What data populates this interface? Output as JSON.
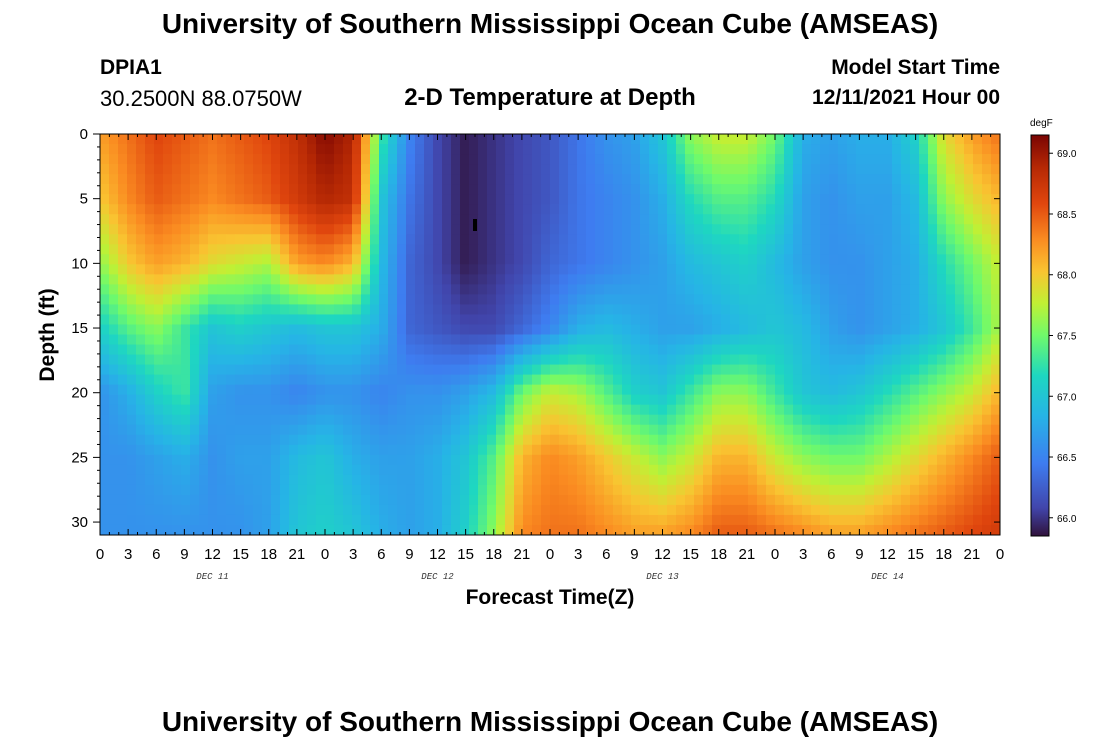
{
  "header": {
    "title": "University of Southern Mississippi Ocean Cube (AMSEAS)",
    "station_id": "DPIA1",
    "coords": "30.2500N  88.0750W",
    "plot_title": "2-D Temperature at Depth",
    "model_label": "Model Start Time",
    "model_time": "12/11/2021 Hour 00"
  },
  "footer": {
    "title": "University of Southern Mississippi Ocean Cube (AMSEAS)"
  },
  "chart_data": {
    "type": "heatmap",
    "title": "2-D Temperature at Depth",
    "xlabel": "Forecast Time(Z)",
    "ylabel": "Depth (ft)",
    "colorbar_label": "degF",
    "x_hours": [
      0,
      96
    ],
    "x_tick_labels": [
      "0",
      "3",
      "6",
      "9",
      "12",
      "15",
      "18",
      "21",
      "0",
      "3",
      "6",
      "9",
      "12",
      "15",
      "18",
      "21",
      "0",
      "3",
      "6",
      "9",
      "12",
      "15",
      "18",
      "21",
      "0",
      "3",
      "6",
      "9",
      "12",
      "15",
      "18",
      "21",
      "0"
    ],
    "day_labels": [
      {
        "label": "DEC 11",
        "hour": 12
      },
      {
        "label": "DEC 12",
        "hour": 36
      },
      {
        "label": "DEC 13",
        "hour": 60
      },
      {
        "label": "DEC 14",
        "hour": 84
      }
    ],
    "ylim": [
      0,
      31
    ],
    "y_ticks": [
      0,
      5,
      10,
      15,
      20,
      25,
      30
    ],
    "colorbar_range": [
      65.85,
      69.15
    ],
    "colorbar_ticks": [
      "66.0",
      "66.5",
      "67.0",
      "67.5",
      "68.0",
      "68.5",
      "69.0"
    ],
    "colorbar_tick_values": [
      66.0,
      66.5,
      67.0,
      67.5,
      68.0,
      68.5,
      69.0
    ],
    "depths_ft": [
      0,
      5,
      10,
      15,
      20,
      25,
      31
    ],
    "time_hours": [
      0,
      3,
      6,
      9,
      12,
      15,
      18,
      21,
      24,
      27,
      30,
      33,
      36,
      39,
      42,
      45,
      48,
      51,
      54,
      57,
      60,
      63,
      66,
      69,
      72,
      75,
      78,
      81,
      84,
      87,
      90,
      93,
      96
    ],
    "temperature_degF": [
      [
        68.2,
        68.4,
        68.6,
        68.5,
        68.4,
        68.5,
        68.6,
        68.8,
        69.1,
        68.9,
        67.3,
        66.5,
        66.1,
        65.9,
        66.0,
        66.1,
        66.2,
        66.4,
        66.6,
        66.7,
        67.0,
        67.6,
        67.8,
        67.8,
        67.5,
        66.8,
        66.7,
        66.8,
        66.8,
        67.1,
        67.9,
        68.2,
        68.4
      ],
      [
        68.0,
        68.3,
        68.5,
        68.4,
        68.3,
        68.4,
        68.5,
        68.7,
        68.9,
        68.8,
        67.0,
        66.4,
        66.1,
        65.9,
        66.0,
        66.1,
        66.2,
        66.4,
        66.5,
        66.6,
        66.8,
        67.2,
        67.4,
        67.4,
        67.2,
        66.7,
        66.6,
        66.7,
        66.7,
        66.9,
        67.6,
        67.9,
        68.1
      ],
      [
        67.6,
        68.0,
        68.2,
        68.1,
        67.9,
        67.8,
        67.7,
        68.2,
        68.3,
        68.1,
        66.9,
        66.3,
        66.1,
        65.9,
        66.0,
        66.1,
        66.3,
        66.4,
        66.5,
        66.6,
        66.7,
        66.9,
        67.0,
        67.1,
        66.9,
        66.7,
        66.6,
        66.6,
        66.7,
        66.8,
        67.2,
        67.5,
        67.8
      ],
      [
        67.1,
        67.4,
        67.6,
        67.3,
        67.0,
        67.1,
        67.0,
        66.9,
        67.0,
        67.0,
        66.8,
        66.3,
        66.2,
        66.1,
        66.1,
        66.3,
        66.5,
        66.8,
        66.9,
        66.8,
        66.7,
        66.7,
        66.8,
        66.9,
        67.0,
        66.9,
        66.7,
        66.6,
        66.7,
        66.8,
        67.0,
        67.3,
        67.7
      ],
      [
        66.6,
        66.8,
        67.1,
        67.3,
        66.7,
        66.6,
        66.6,
        66.5,
        66.6,
        66.6,
        66.5,
        66.6,
        66.6,
        66.7,
        66.9,
        67.5,
        67.8,
        67.7,
        67.4,
        67.1,
        67.0,
        67.3,
        67.6,
        67.6,
        67.3,
        67.0,
        66.9,
        67.0,
        67.2,
        67.4,
        67.6,
        67.8,
        68.1
      ],
      [
        66.6,
        66.6,
        66.7,
        66.8,
        66.6,
        66.7,
        66.7,
        66.9,
        67.0,
        66.8,
        66.7,
        66.7,
        66.8,
        67.0,
        67.4,
        68.1,
        68.3,
        68.2,
        68.0,
        67.8,
        67.6,
        67.8,
        68.1,
        68.1,
        67.8,
        67.6,
        67.5,
        67.5,
        67.7,
        67.9,
        68.1,
        68.3,
        68.5
      ],
      [
        66.6,
        66.6,
        66.6,
        66.6,
        66.6,
        66.6,
        66.7,
        67.0,
        67.1,
        67.0,
        66.8,
        66.7,
        66.8,
        67.1,
        67.6,
        68.3,
        68.4,
        68.4,
        68.3,
        68.2,
        68.2,
        68.3,
        68.5,
        68.5,
        68.4,
        68.3,
        68.2,
        68.2,
        68.3,
        68.4,
        68.5,
        68.6,
        68.7
      ]
    ]
  }
}
